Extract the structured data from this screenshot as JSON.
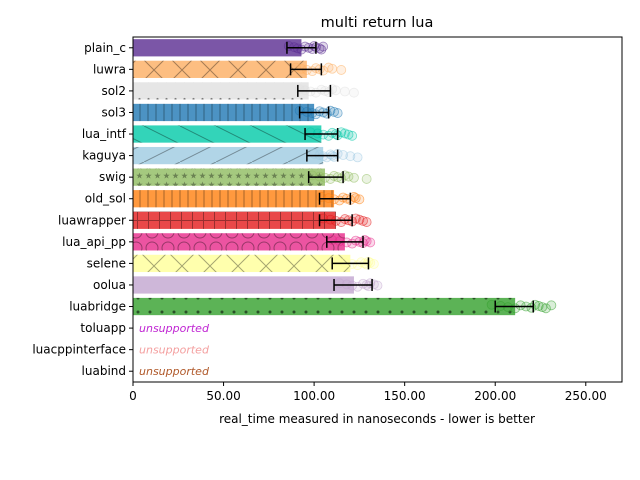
{
  "chart_data": {
    "type": "bar",
    "orientation": "horizontal",
    "title": "multi return lua",
    "xlabel": "real_time measured in nanoseconds - lower is better",
    "ylabel": "",
    "xlim": [
      0,
      270
    ],
    "xticks": [
      0,
      50,
      100,
      150,
      200,
      250
    ],
    "xtick_labels": [
      "0",
      "50.00",
      "100.00",
      "150.00",
      "200.00",
      "250.00"
    ],
    "grid": false,
    "legend": "none",
    "unsupported_label": "unsupported",
    "bars": [
      {
        "name": "plain_c",
        "value": 93,
        "err_low": 85,
        "err_high": 101,
        "color": "#5a2c91",
        "hatch": "none",
        "samples": [
          86,
          89,
          91,
          93,
          95,
          97,
          99,
          100,
          101,
          103,
          104,
          105
        ]
      },
      {
        "name": "luwra",
        "value": 96,
        "err_low": 87,
        "err_high": 104,
        "color": "#fdae61",
        "hatch": "cross",
        "samples": [
          90,
          93,
          96,
          99,
          101,
          103,
          105,
          108,
          110,
          115
        ]
      },
      {
        "name": "sol2",
        "value": 97,
        "err_low": 91,
        "err_high": 109,
        "color": "#e0e0e0",
        "hatch": "dots",
        "samples": [
          92,
          95,
          98,
          101,
          104,
          106,
          108,
          110,
          112,
          117,
          122
        ]
      },
      {
        "name": "sol3",
        "value": 100,
        "err_low": 92,
        "err_high": 108,
        "color": "#1f78b4",
        "hatch": "vertical",
        "samples": [
          92,
          96,
          99,
          101,
          103,
          105,
          107,
          109,
          111,
          113
        ]
      },
      {
        "name": "lua_intf",
        "value": 104,
        "err_low": 95,
        "err_high": 113,
        "color": "#00c9a7",
        "hatch": "backslash",
        "samples": [
          98,
          102,
          105,
          108,
          110,
          112,
          113,
          115,
          117,
          119,
          121
        ]
      },
      {
        "name": "kaguya",
        "value": 105,
        "err_low": 96,
        "err_high": 113,
        "color": "#9ecae1",
        "hatch": "slash",
        "samples": [
          100,
          103,
          105,
          107,
          109,
          110,
          111,
          113,
          116,
          120,
          124
        ]
      },
      {
        "name": "swig",
        "value": 106,
        "err_low": 97,
        "err_high": 116,
        "color": "#8fbc5f",
        "hatch": "stars",
        "samples": [
          99,
          103,
          106,
          109,
          111,
          113,
          115,
          117,
          119,
          122,
          129
        ]
      },
      {
        "name": "old_sol",
        "value": 111,
        "err_low": 103,
        "err_high": 120,
        "color": "#ff7f0e",
        "hatch": "vertical",
        "samples": [
          104,
          108,
          111,
          114,
          116,
          118,
          120,
          122,
          123,
          125
        ]
      },
      {
        "name": "luawrapper",
        "value": 112,
        "err_low": 103,
        "err_high": 121,
        "color": "#e31a1c",
        "hatch": "plus",
        "samples": [
          105,
          109,
          112,
          115,
          117,
          119,
          121,
          123,
          125,
          127,
          129
        ]
      },
      {
        "name": "lua_api_pp",
        "value": 117,
        "err_low": 107,
        "err_high": 127,
        "color": "#e7298a",
        "hatch": "circles",
        "samples": [
          110,
          114,
          118,
          121,
          123,
          125,
          127,
          128,
          129,
          131
        ]
      },
      {
        "name": "selene",
        "value": 120,
        "err_low": 110,
        "err_high": 130,
        "color": "#ffff99",
        "hatch": "cross",
        "samples": [
          113,
          117,
          121,
          124,
          126,
          128,
          129,
          130,
          131,
          133
        ]
      },
      {
        "name": "oolua",
        "value": 122,
        "err_low": 111,
        "err_high": 132,
        "color": "#c2a5cf",
        "hatch": "none",
        "samples": [
          114,
          118,
          121,
          124,
          127,
          129,
          130,
          131,
          133,
          135
        ]
      },
      {
        "name": "luabridge",
        "value": 211,
        "err_low": 200,
        "err_high": 221,
        "color": "#33a02c",
        "hatch": "dots-large",
        "samples": [
          198,
          203,
          207,
          211,
          214,
          217,
          220,
          222,
          224,
          226,
          228,
          231
        ]
      },
      {
        "name": "toluapp",
        "value": null,
        "unsupported": true,
        "color": "#c026d3"
      },
      {
        "name": "luacppinterface",
        "value": null,
        "unsupported": true,
        "color": "#f4a0a0"
      },
      {
        "name": "luabind",
        "value": null,
        "unsupported": true,
        "color": "#b0592a"
      }
    ]
  }
}
